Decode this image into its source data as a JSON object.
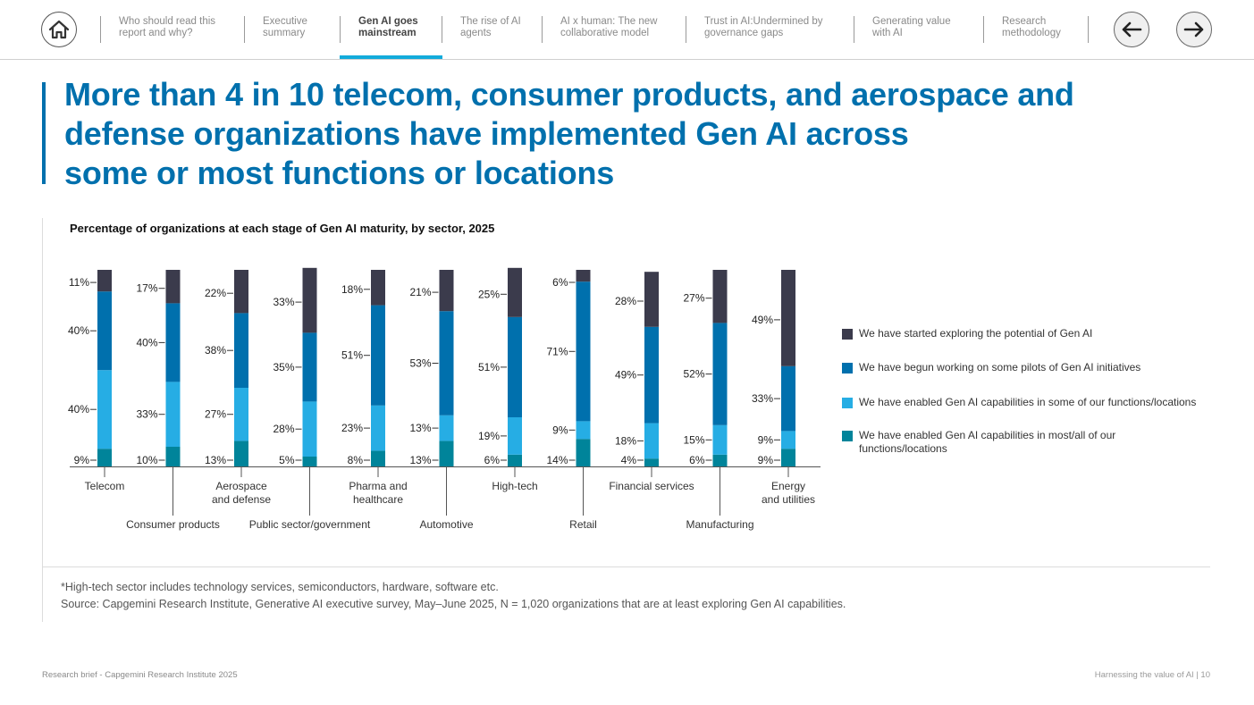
{
  "nav": {
    "items": [
      {
        "label_line1": "Who should read this",
        "label_line2": "report and why?"
      },
      {
        "label_line1": "Executive",
        "label_line2": "summary"
      },
      {
        "label_line1": "Gen AI goes",
        "label_line2": "mainstream"
      },
      {
        "label_line1": "The rise of AI",
        "label_line2": "agents"
      },
      {
        "label_line1": "AI x human: The new",
        "label_line2": "collaborative model"
      },
      {
        "label_line1": "Trust in AI:Undermined by",
        "label_line2": "governance gaps"
      },
      {
        "label_line1": "Generating value",
        "label_line2": "with AI"
      },
      {
        "label_line1": "Research",
        "label_line2": "methodology"
      }
    ],
    "icons": {
      "home": "home-icon",
      "prev": "arrow-left-icon",
      "next": "arrow-right-icon"
    }
  },
  "headline": {
    "line1": "More than 4 in 10 telecom, consumer products, and aerospace and",
    "line2": "defense organizations have implemented Gen AI across",
    "line3": "some or most functions or locations"
  },
  "chart_data": {
    "type": "bar",
    "stacked": true,
    "title": "Percentage of organizations at each stage of Gen AI maturity, by sector, 2025",
    "categories": [
      "Telecom",
      "Consumer products",
      "Aerospace and defense",
      "Public sector/government",
      "Pharma and healthcare",
      "Automotive",
      "High-tech",
      "Retail",
      "Financial services",
      "Manufacturing",
      "Energy and utilities"
    ],
    "series": [
      {
        "name": "We have enabled Gen AI capabilities in most/all of our functions/locations",
        "color": "#00849a",
        "values": [
          9,
          10,
          13,
          5,
          8,
          13,
          6,
          14,
          4,
          6,
          9
        ]
      },
      {
        "name": "We have enabled Gen AI capabilities in some of our functions/locations",
        "color": "#26ade4",
        "values": [
          40,
          33,
          27,
          28,
          23,
          13,
          19,
          9,
          18,
          15,
          9
        ]
      },
      {
        "name": "We have begun working on some pilots of Gen AI initiatives",
        "color": "#0070ad",
        "values": [
          40,
          40,
          38,
          35,
          51,
          53,
          51,
          71,
          49,
          52,
          33
        ]
      },
      {
        "name": "We have started exploring the potential of Gen AI",
        "color": "#3b3b4c",
        "values": [
          11,
          17,
          22,
          33,
          18,
          21,
          25,
          6,
          28,
          27,
          49
        ]
      }
    ],
    "legend_position": "right",
    "grid": false,
    "ylim": [
      0,
      100
    ]
  },
  "legend": [
    {
      "label": "We have started exploring the potential of Gen AI",
      "color": "#3b3b4c"
    },
    {
      "label": "We have begun working on some pilots of Gen AI initiatives",
      "color": "#0070ad"
    },
    {
      "label": "We have enabled Gen AI capabilities in some of our functions/locations",
      "color": "#26ade4"
    },
    {
      "label": "We have enabled Gen AI capabilities in most/all of our functions/locations",
      "color": "#00849a"
    }
  ],
  "category_labels": [
    {
      "lines": [
        "Telecom"
      ],
      "row": "upper"
    },
    {
      "lines": [
        "Consumer products"
      ],
      "row": "lower"
    },
    {
      "lines": [
        "Aerospace",
        "and defense"
      ],
      "row": "upper"
    },
    {
      "lines": [
        "Public sector/government"
      ],
      "row": "lower"
    },
    {
      "lines": [
        "Pharma and",
        "healthcare"
      ],
      "row": "upper"
    },
    {
      "lines": [
        "Automotive"
      ],
      "row": "lower"
    },
    {
      "lines": [
        "High-tech"
      ],
      "row": "upper"
    },
    {
      "lines": [
        "Retail"
      ],
      "row": "lower"
    },
    {
      "lines": [
        "Financial services"
      ],
      "row": "upper"
    },
    {
      "lines": [
        "Manufacturing"
      ],
      "row": "lower"
    },
    {
      "lines": [
        "Energy",
        "and utilities"
      ],
      "row": "upper"
    }
  ],
  "notes": {
    "note": "*High-tech sector includes technology services, semiconductors, hardware, software etc.",
    "source": "Source: Capgemini Research Institute, Generative AI executive survey, May–June 2025, N = 1,020 organizations that are at least exploring Gen AI capabilities."
  },
  "footer": {
    "left": "Research brief - Capgemini Research Institute 2025",
    "right": "Harnessing the value of AI  |  10"
  }
}
